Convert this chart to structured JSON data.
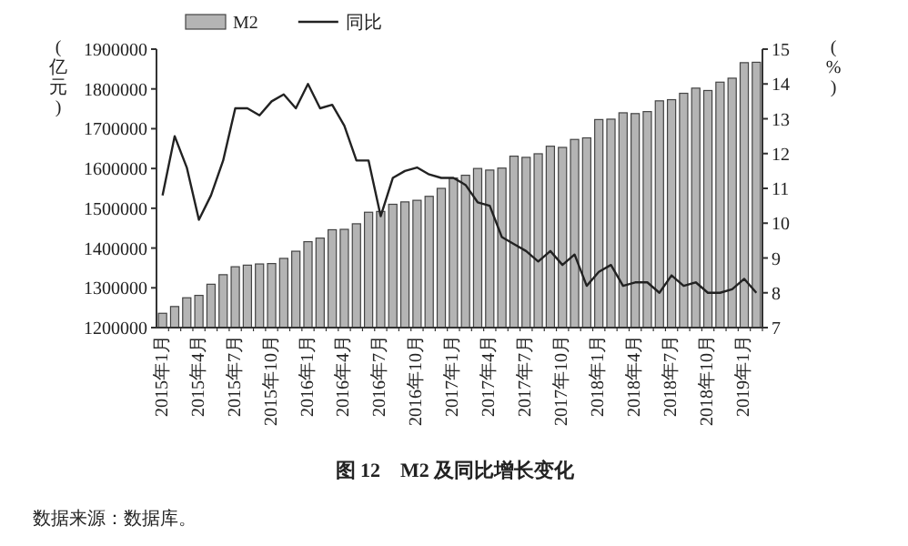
{
  "chart_data": {
    "type": "bar",
    "title": "图 12　M2 及同比增长变化",
    "annotations": [
      "数据来源：数据库。"
    ],
    "ylabel": "(亿元)",
    "y2label": "(%)",
    "legend": "top",
    "categories": [
      "2015年1月",
      null,
      null,
      "2015年4月",
      null,
      null,
      "2015年7月",
      null,
      null,
      "2015年10月",
      null,
      null,
      "2016年1月",
      null,
      null,
      "2016年4月",
      null,
      null,
      "2016年7月",
      null,
      null,
      "2016年10月",
      null,
      null,
      "2017年1月",
      null,
      null,
      "2017年4月",
      null,
      null,
      "2017年7月",
      null,
      null,
      "2017年10月",
      null,
      null,
      "2018年1月",
      null,
      null,
      "2018年4月",
      null,
      null,
      "2018年7月",
      null,
      null,
      "2018年10月",
      null,
      null,
      "2019年1月",
      null
    ],
    "series": [
      {
        "name": "M2",
        "color": "#b4b4b4",
        "values": [
          1236000,
          1253000,
          1275000,
          1281000,
          1309000,
          1333000,
          1353000,
          1357000,
          1360000,
          1361000,
          1374000,
          1392000,
          1416000,
          1425000,
          1446000,
          1447000,
          1461000,
          1490000,
          1492000,
          1510000,
          1516000,
          1520000,
          1530000,
          1550000,
          1576000,
          1583000,
          1600000,
          1596000,
          1601000,
          1631000,
          1628000,
          1637000,
          1656000,
          1653000,
          1673000,
          1677000,
          1723000,
          1724000,
          1740000,
          1738000,
          1743000,
          1770000,
          1773000,
          1789000,
          1802000,
          1796000,
          1817000,
          1827000,
          1866000,
          1867000
        ]
      },
      {
        "name": "同比",
        "type": "line",
        "axis": "y2",
        "color": "#222222",
        "values": [
          10.8,
          12.5,
          11.6,
          10.1,
          10.8,
          11.8,
          13.3,
          13.3,
          13.1,
          13.5,
          13.7,
          13.3,
          14.0,
          13.3,
          13.4,
          12.8,
          11.8,
          11.8,
          10.2,
          11.3,
          11.5,
          11.6,
          11.4,
          11.3,
          11.3,
          11.1,
          10.6,
          10.5,
          9.6,
          9.4,
          9.2,
          8.9,
          9.2,
          8.8,
          9.1,
          8.2,
          8.6,
          8.8,
          8.2,
          8.3,
          8.3,
          8.0,
          8.5,
          8.2,
          8.3,
          8.0,
          8.0,
          8.1,
          8.4,
          8.0
        ]
      }
    ],
    "ylim": [
      1200000,
      1900000
    ],
    "yticks": [
      1200000,
      1300000,
      1400000,
      1500000,
      1600000,
      1700000,
      1800000,
      1900000
    ],
    "y2lim": [
      7,
      15
    ],
    "y2ticks": [
      7,
      8,
      9,
      10,
      11,
      12,
      13,
      14,
      15
    ]
  }
}
